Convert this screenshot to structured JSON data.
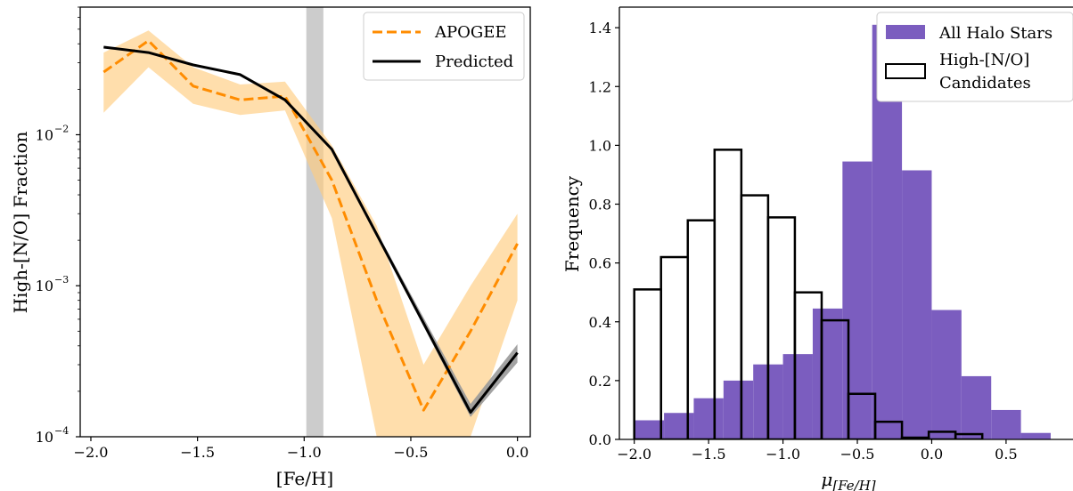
{
  "chart_data": [
    {
      "type": "line",
      "xlabel": "[Fe/H]",
      "ylabel": "High-[N/O] Fraction",
      "xlim": [
        -2.05,
        0.06
      ],
      "ylim": [
        0.0001,
        0.07
      ],
      "yscale": "log",
      "xticks": [
        -2.0,
        -1.5,
        -1.0,
        -0.5,
        0.0
      ],
      "xtick_labels": [
        "−2.0",
        "−1.5",
        "−1.0",
        "−0.5",
        "0.0"
      ],
      "yticks": [
        0.0001,
        0.001,
        0.01
      ],
      "ytick_labels": [
        "10",
        "10",
        "10"
      ],
      "ytick_exponents": [
        "−4",
        "−3",
        "−2"
      ],
      "vspan": [
        -0.99,
        -0.91
      ],
      "vspan_color": "#cccccc",
      "legend_position": "top-right",
      "series": [
        {
          "name": "APOGEE",
          "style": "dashed",
          "color": "#ff8c00",
          "band_color": "#ffcc80",
          "x": [
            -1.94,
            -1.73,
            -1.52,
            -1.3,
            -1.09,
            -0.87,
            -0.66,
            -0.44,
            -0.22,
            0.0
          ],
          "y": [
            0.026,
            0.042,
            0.021,
            0.017,
            0.018,
            0.005,
            0.0008,
            0.00015,
            0.0005,
            0.0019
          ],
          "y_low": [
            0.014,
            0.028,
            0.016,
            0.0135,
            0.0145,
            0.0028,
            0.0001,
            0.0001,
            0.0001,
            0.0008
          ],
          "y_high": [
            0.035,
            0.049,
            0.028,
            0.0215,
            0.0225,
            0.0085,
            0.0025,
            0.0003,
            0.001,
            0.003
          ]
        },
        {
          "name": "Predicted",
          "style": "solid",
          "color": "#000000",
          "band_color": "#999999",
          "x": [
            -1.94,
            -1.73,
            -1.52,
            -1.3,
            -1.09,
            -0.87,
            -0.22,
            0.0
          ],
          "y": [
            0.038,
            0.035,
            0.029,
            0.025,
            0.017,
            0.008,
            0.000145,
            0.00036
          ],
          "y_low": [
            0.038,
            0.035,
            0.029,
            0.025,
            0.017,
            0.008,
            0.000135,
            0.00031
          ],
          "y_high": [
            0.038,
            0.035,
            0.029,
            0.025,
            0.017,
            0.008,
            0.000165,
            0.00041
          ]
        }
      ]
    },
    {
      "type": "bar",
      "subtype": "histogram",
      "xlabel": "μ",
      "xlabel_subscript": "[Fe/H]",
      "ylabel": "Frequency",
      "xlim": [
        -2.1,
        0.95
      ],
      "ylim": [
        0,
        1.47
      ],
      "xticks": [
        -2.0,
        -1.5,
        -1.0,
        -0.5,
        0.0,
        0.5
      ],
      "xtick_labels": [
        "−2.0",
        "−1.5",
        "−1.0",
        "−0.5",
        "0.0",
        "0.5"
      ],
      "yticks": [
        0.0,
        0.2,
        0.4,
        0.6,
        0.8,
        1.0,
        1.2,
        1.4
      ],
      "ytick_labels": [
        "0.0",
        "0.2",
        "0.4",
        "0.6",
        "0.8",
        "1.0",
        "1.2",
        "1.4"
      ],
      "legend_position": "top-right",
      "series": [
        {
          "name": "All Halo Stars",
          "kind": "filled",
          "color": "#7b5dbf",
          "bin_edges": [
            -2.0,
            -1.8,
            -1.6,
            -1.4,
            -1.2,
            -1.0,
            -0.8,
            -0.6,
            -0.4,
            -0.2,
            0.0,
            0.2,
            0.4,
            0.6,
            0.8
          ],
          "values": [
            0.065,
            0.09,
            0.14,
            0.2,
            0.255,
            0.29,
            0.445,
            0.945,
            1.41,
            0.915,
            0.44,
            0.215,
            0.1,
            0.022
          ]
        },
        {
          "name": "High-[N/O] Candidates",
          "legend_lines": [
            "High-[N/O]",
            "Candidates"
          ],
          "kind": "outline",
          "color": "#000000",
          "bin_edges": [
            -2.0,
            -1.82,
            -1.64,
            -1.46,
            -1.28,
            -1.1,
            -0.92,
            -0.74,
            -0.56,
            -0.38,
            -0.2,
            -0.02,
            0.16,
            0.34
          ],
          "values": [
            0.51,
            0.62,
            0.745,
            0.985,
            0.83,
            0.755,
            0.5,
            0.405,
            0.155,
            0.06,
            0.006,
            0.026,
            0.018
          ]
        }
      ]
    }
  ]
}
